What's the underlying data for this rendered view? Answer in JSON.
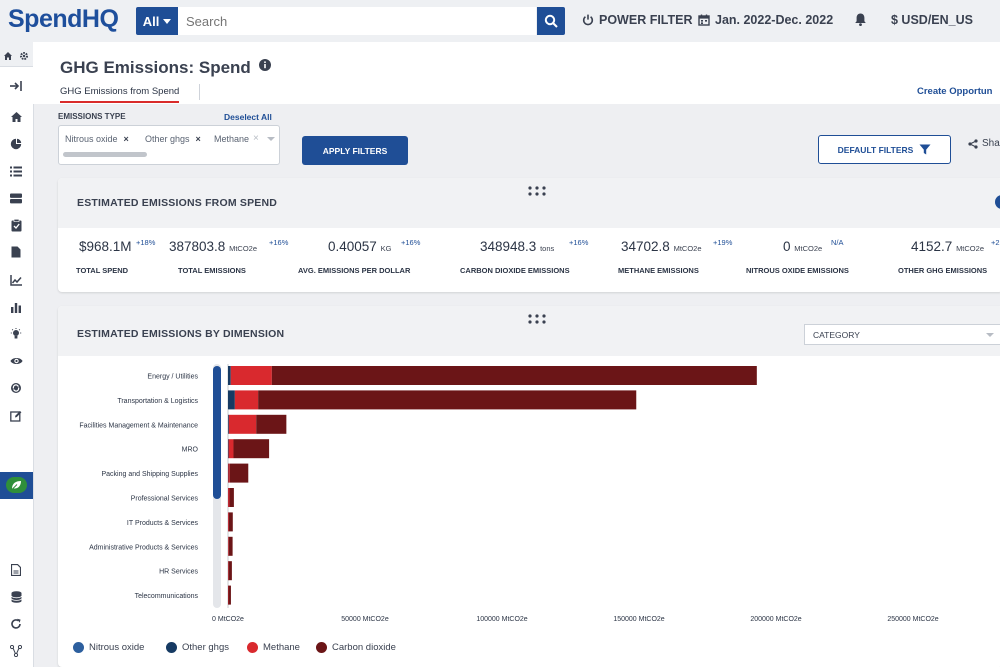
{
  "header": {
    "logo_spend": "Spend",
    "logo_hq": "HQ",
    "scope_label": "All",
    "search_placeholder": "Search",
    "power_filter_label": "POWER FILTER",
    "date_range": "Jan. 2022-Dec. 2022",
    "currency_locale": "$ USD/EN_US"
  },
  "page": {
    "title": "GHG Emissions: Spend",
    "tab_label": "GHG Emissions from Spend",
    "create_opportunity_label": "Create Opportun"
  },
  "filters": {
    "emissions_type_label": "EMISSIONS TYPE",
    "deselect_all_label": "Deselect All",
    "selected_tags": [
      "Nitrous oxide",
      "Other ghgs",
      "Methane"
    ],
    "apply_label": "APPLY FILTERS",
    "default_filters_label": "DEFAULT FILTERS",
    "share_label": "Sha"
  },
  "summary_card": {
    "title": "ESTIMATED EMISSIONS FROM SPEND",
    "metrics": [
      {
        "value": "$968.1M",
        "unit": "",
        "change": "+18%",
        "label": "TOTAL SPEND"
      },
      {
        "value": "387803.8",
        "unit": "MtCO2e",
        "change": "+16%",
        "label": "TOTAL EMISSIONS"
      },
      {
        "value": "0.40057",
        "unit": "KG",
        "change": "+16%",
        "label": "AVG. EMISSIONS PER DOLLAR"
      },
      {
        "value": "348948.3",
        "unit": "tons",
        "change": "+16%",
        "label": "CARBON DIOXIDE EMISSIONS"
      },
      {
        "value": "34702.8",
        "unit": "MtCO2e",
        "change": "+19%",
        "label": "METHANE EMISSIONS"
      },
      {
        "value": "0",
        "unit": "MtCO2e",
        "change": "N/A",
        "label": "NITROUS OXIDE EMISSIONS"
      },
      {
        "value": "4152.7",
        "unit": "MtCO2e",
        "change": "+2",
        "label": "OTHER GHG EMISSIONS"
      }
    ]
  },
  "dimension_card": {
    "title": "ESTIMATED EMISSIONS BY DIMENSION",
    "dimension_select_value": "CATEGORY"
  },
  "colors": {
    "nitrous_oxide": "#2d5f9e",
    "other_ghgs": "#163a63",
    "methane": "#d9292e",
    "carbon_dioxide": "#6b1517",
    "accent": "#1f4e96"
  },
  "chart_data": {
    "type": "bar",
    "orientation": "horizontal",
    "stacked": true,
    "categories": [
      "Energy / Utilities",
      "Transportation & Logistics",
      "Facilities Management & Maintenance",
      "MRO",
      "Packing and Shipping Supplies",
      "Professional Services",
      "IT Products & Services",
      "Administrative Products & Services",
      "HR Services",
      "Telecommunications"
    ],
    "series": [
      {
        "name": "Nitrous oxide",
        "color": "#2d5f9e",
        "values": [
          0,
          0,
          0,
          0,
          0,
          0,
          0,
          0,
          0,
          0
        ]
      },
      {
        "name": "Other ghgs",
        "color": "#163a63",
        "values": [
          1000,
          2500,
          300,
          200,
          100,
          50,
          50,
          30,
          20,
          20
        ]
      },
      {
        "name": "Methane",
        "color": "#d9292e",
        "values": [
          15000,
          8500,
          10000,
          1800,
          500,
          500,
          300,
          250,
          200,
          150
        ]
      },
      {
        "name": "Carbon dioxide",
        "color": "#6b1517",
        "values": [
          177000,
          138000,
          11000,
          13000,
          6800,
          1600,
          1400,
          1400,
          1200,
          900
        ]
      }
    ],
    "x_ticks": [
      "0 MtCO2e",
      "50000 MtCO2e",
      "100000 MtCO2e",
      "150000 MtCO2e",
      "200000 MtCO2e",
      "250000 MtCO2e"
    ],
    "xlim": [
      0,
      270000
    ],
    "legend_position": "bottom-left"
  }
}
